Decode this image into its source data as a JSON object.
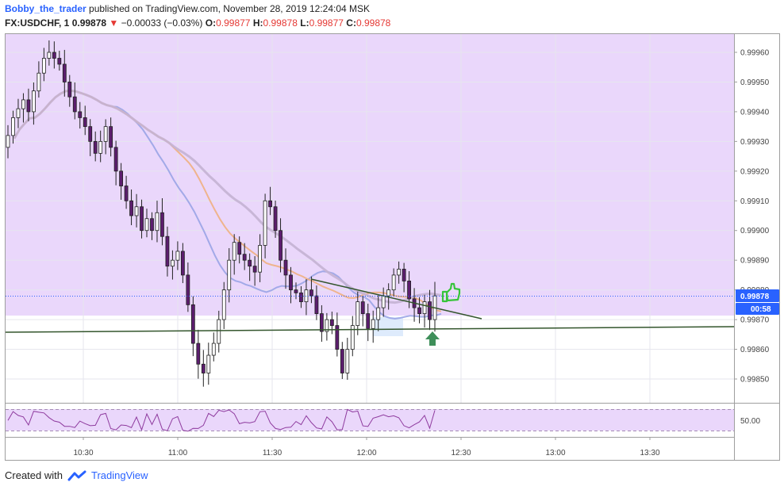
{
  "header": {
    "author": "Bobby_the_trader",
    "published": "published on TradingView.com, November 28, 2019 12:24:04 MSK"
  },
  "ohlc": {
    "symbol": "FX:USDCHF, 1",
    "last": "0.99878",
    "change": "−0.00033 (−0.03%)",
    "o_label": "O:",
    "o": "0.99877",
    "h_label": "H:",
    "h": "0.99878",
    "l_label": "L:",
    "l": "0.99877",
    "c_label": "C:",
    "c": "0.99878"
  },
  "footer": {
    "created": "Created with",
    "brand": "TradingView"
  },
  "colors": {
    "zone": "#ead7fb",
    "candle_up": "#ffffff",
    "candle_down": "#5c1d6e",
    "ma_blue": "#9aa4e6",
    "ma_orange": "#f0b081",
    "ma_grey": "#c4b2d3",
    "trend": "#33552c",
    "arrow": "#3f8f5a",
    "thumb": "#36c43a",
    "price_badge": "#2962ff",
    "rsi": "#8e3a9e"
  },
  "chart_data": {
    "type": "candlestick",
    "symbol": "FX:USDCHF",
    "interval": "1",
    "ylim": [
      0.99845,
      0.99965
    ],
    "y_ticks": [
      "0.99960",
      "0.99950",
      "0.99940",
      "0.99930",
      "0.99920",
      "0.99910",
      "0.99900",
      "0.99890",
      "0.99880",
      "0.99870",
      "0.99860",
      "0.99850"
    ],
    "x_ticks": [
      "10:30",
      "11:00",
      "11:30",
      "12:00",
      "12:30",
      "13:00",
      "13:30"
    ],
    "current_price": "0.99878",
    "countdown": "00:58",
    "rsi_level_label": "50.00",
    "close_series": [
      0.99932,
      0.99938,
      0.99941,
      0.99944,
      0.9994,
      0.99947,
      0.99953,
      0.99958,
      0.9996,
      0.99958,
      0.99956,
      0.9995,
      0.99945,
      0.9994,
      0.99938,
      0.99935,
      0.9993,
      0.99926,
      0.9993,
      0.99935,
      0.99928,
      0.9992,
      0.99915,
      0.9991,
      0.99905,
      0.99908,
      0.999,
      0.99904,
      0.999,
      0.99906,
      0.99898,
      0.99888,
      0.9989,
      0.99893,
      0.99885,
      0.99875,
      0.99862,
      0.99855,
      0.99852,
      0.99858,
      0.99862,
      0.9987,
      0.9988,
      0.9989,
      0.99896,
      0.99892,
      0.9989,
      0.99888,
      0.99886,
      0.99895,
      0.9991,
      0.99908,
      0.999,
      0.9989,
      0.99885,
      0.9988,
      0.99879,
      0.99876,
      0.9988,
      0.99878,
      0.99872,
      0.99866,
      0.9987,
      0.99868,
      0.9986,
      0.99852,
      0.9986,
      0.99868,
      0.99876,
      0.99872,
      0.99867,
      0.9987,
      0.99874,
      0.99878,
      0.9988,
      0.99885,
      0.99887,
      0.99883,
      0.99877,
      0.99874,
      0.99872,
      0.99876,
      0.9987,
      0.99878
    ]
  }
}
